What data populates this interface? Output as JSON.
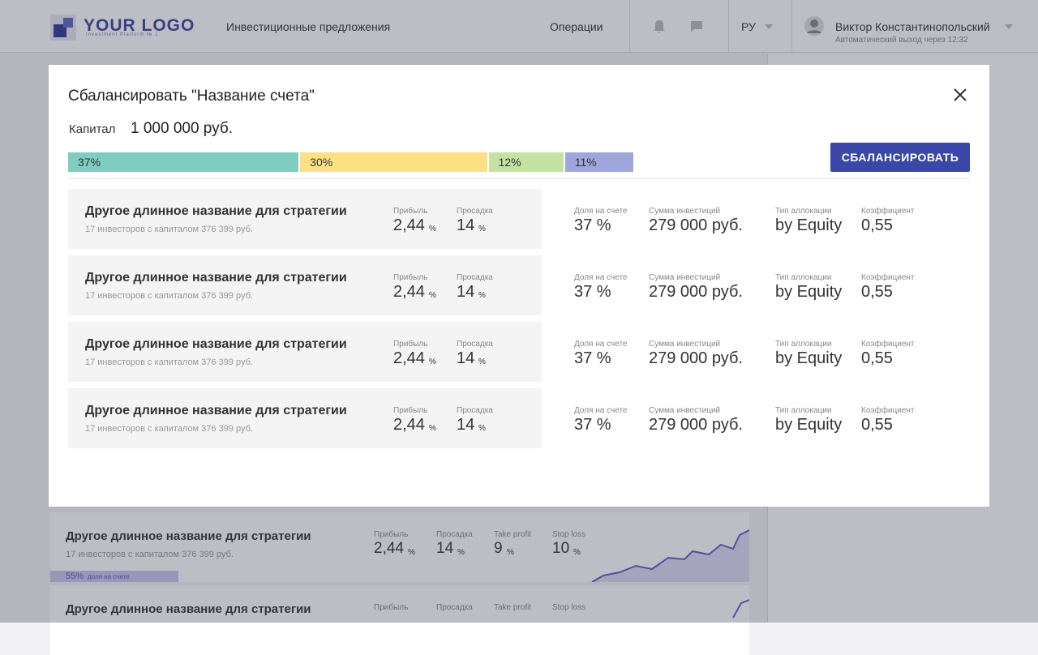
{
  "header": {
    "logo": "YOUR LOGO",
    "logo_sub": "Investment Platform № 1",
    "nav": [
      "Инвестиционные предложения",
      "Операции"
    ],
    "lang": "РУ",
    "user_name": "Виктор Константинопольский",
    "user_note": "Автоматический выход через 12:32"
  },
  "background_cards": [
    {
      "name": "Другое длинное название для стратегии",
      "investors": "17 инвесторов с капиталом 376 399 руб.",
      "stats": [
        {
          "label": "Прибыль",
          "value": "2,44",
          "unit": "%"
        },
        {
          "label": "Просадка",
          "value": "14",
          "unit": "%"
        },
        {
          "label": "Take profit",
          "value": "9",
          "unit": "%"
        },
        {
          "label": "Stop loss",
          "value": "10",
          "unit": "%"
        }
      ],
      "share": "55%",
      "share_label": "доля на счете"
    },
    {
      "name": "Другое длинное название для стратегии",
      "stats": [
        {
          "label": "Прибыль"
        },
        {
          "label": "Просадка"
        },
        {
          "label": "Take profit"
        },
        {
          "label": "Stop loss"
        }
      ]
    }
  ],
  "modal": {
    "title": "Сбалансировать \"Название счета\"",
    "capital_label": "Капитал",
    "capital_value": "1 000 000 руб.",
    "button": "СБАЛАНСИРОВАТЬ",
    "allocation": {
      "values": [
        37,
        30,
        12,
        11
      ],
      "value_labels": [
        "37%",
        "30%",
        "12%",
        "11%"
      ],
      "colors": [
        "#7ecdc0",
        "#fde084",
        "#c4e3a2",
        "#9ea6dc"
      ]
    },
    "columns": {
      "profit": "Прибыль",
      "drawdown": "Просадка",
      "share": "Доля на счете",
      "sum": "Сумма инвестиций",
      "type": "Тип аллокации",
      "coef": "Коэффициент"
    },
    "rows": [
      {
        "name": "Другое длинное название для стратегии",
        "investors": "17 инвесторов с капиталом 376 399 руб.",
        "profit": "2,44",
        "profit_unit": "%",
        "drawdown": "14",
        "drawdown_unit": "%",
        "share": "37 %",
        "sum": "279 000 руб.",
        "type": "by Equity",
        "coef": "0,55"
      },
      {
        "name": "Другое длинное название для стратегии",
        "investors": "17 инвесторов с капиталом 376 399 руб.",
        "profit": "2,44",
        "profit_unit": "%",
        "drawdown": "14",
        "drawdown_unit": "%",
        "share": "37 %",
        "sum": "279 000 руб.",
        "type": "by Equity",
        "coef": "0,55"
      },
      {
        "name": "Другое длинное название для стратегии",
        "investors": "17 инвесторов с капиталом 376 399 руб.",
        "profit": "2,44",
        "profit_unit": "%",
        "drawdown": "14",
        "drawdown_unit": "%",
        "share": "37 %",
        "sum": "279 000 руб.",
        "type": "by Equity",
        "coef": "0,55"
      },
      {
        "name": "Другое длинное название для стратегии",
        "investors": "17 инвесторов с капиталом 376 399 руб.",
        "profit": "2,44",
        "profit_unit": "%",
        "drawdown": "14",
        "drawdown_unit": "%",
        "share": "37 %",
        "sum": "279 000 руб.",
        "type": "by Equity",
        "coef": "0,55"
      }
    ]
  }
}
